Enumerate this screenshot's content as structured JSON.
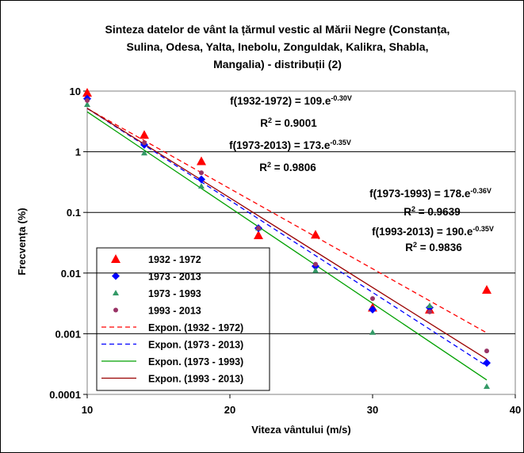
{
  "chart_data": {
    "type": "scatter",
    "title": [
      "Sinteza datelor de vânt la țărmul vestic al Mării Negre (Constanța,",
      "Sulina, Odesa, Yalta, Inebolu, Zonguldak, Kalikra, Shabla,",
      "Mangalia) - distribuții (2)"
    ],
    "x_label": "Viteza vântului (m/s)",
    "y_label": "Frecvența (%)",
    "x": [
      10,
      14,
      18,
      22,
      26,
      30,
      34,
      38
    ],
    "xlim": [
      10,
      40
    ],
    "xticks": [
      10,
      20,
      30,
      40
    ],
    "ylim": [
      0.0001,
      10
    ],
    "yticks": [
      0.0001,
      0.001,
      0.01,
      0.1,
      1,
      10
    ],
    "log_y": true,
    "grid": true,
    "series": [
      {
        "name": "1932 - 1972",
        "color": "#ff0000",
        "marker": "triangle",
        "values": [
          9.4,
          1.9,
          0.7,
          0.042,
          0.043,
          0.0027,
          0.0025,
          0.0053
        ],
        "trendline": {
          "name": "Expon. (1932 - 1972)",
          "color": "#ff0000",
          "dashed": true
        }
      },
      {
        "name": "1973 - 2013",
        "color": "#0000ff",
        "marker": "diamond",
        "values": [
          7.5,
          1.3,
          0.35,
          0.055,
          0.013,
          0.0025,
          0.0027,
          0.00033
        ],
        "trendline": {
          "name": "Expon. (1973 - 2013)",
          "color": "#0000ff",
          "dashed": true
        }
      },
      {
        "name": "1973 - 1993",
        "color": "#339966",
        "marker": "small-triangle",
        "values": [
          6,
          0.95,
          0.27,
          0.055,
          0.011,
          0.00105,
          0.0029,
          0.000135
        ],
        "trendline": {
          "name": "Expon. (1973 - 1993)",
          "color": "#00a000",
          "dashed": false
        }
      },
      {
        "name": "1993 - 2013",
        "color": "#993366",
        "marker": "circle",
        "values": [
          7,
          1.4,
          0.45,
          0.055,
          0.014,
          0.0038,
          0.0023,
          0.00052
        ],
        "trendline": {
          "name": "Expon. (1993 - 2013)",
          "color": "#990000",
          "dashed": false
        }
      }
    ],
    "annotations": [
      {
        "text": "f(1932-1972) = 109.e",
        "sup": "-0.30V"
      },
      {
        "text": "R",
        "sup": "2",
        "rest": " = 0.9001"
      },
      {
        "text": "f(1973-2013) = 173.e",
        "sup": "-0.35V"
      },
      {
        "text": "R",
        "sup": "2",
        "rest": " = 0.9806"
      },
      {
        "text": "f(1973-1993) = 178.e",
        "sup": "-0.36V"
      },
      {
        "text": "R",
        "sup": "2",
        "rest": " = 0.9639"
      },
      {
        "text": "f(1993-2013) = 190.e",
        "sup": "-0.35V"
      },
      {
        "text": "R",
        "sup": "2",
        "rest": " = 0.9836"
      }
    ]
  }
}
